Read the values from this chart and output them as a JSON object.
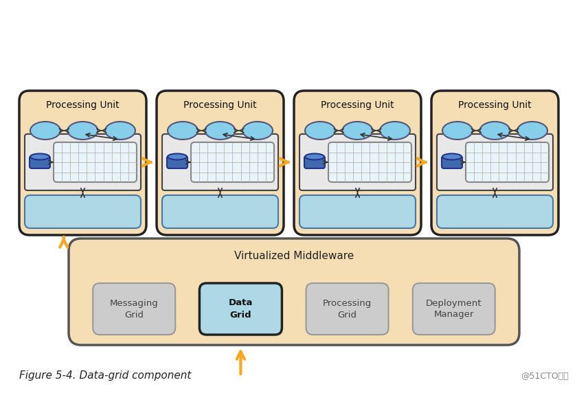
{
  "bg_color": "#ffffff",
  "outer_bg": "#f5deb3",
  "unit_bg": "#f5deb3",
  "unit_border": "#333333",
  "blue_light": "#add8e6",
  "blue_mid": "#87ceeb",
  "blue_dark": "#4169b0",
  "grid_bg": "#e8f4f8",
  "grid_line": "#aaaaaa",
  "orange_arrow": "#f5a623",
  "middleware_bg": "#f5deb3",
  "data_grid_bg": "#add8e6",
  "data_grid_border": "#222222",
  "inactive_box_bg": "#cccccc",
  "inactive_box_border": "#999999",
  "caption": "Figure 5-4. Data-grid component",
  "watermark": "@51CTO博客",
  "pu_labels": [
    "Processing Unit",
    "Processing Unit",
    "Processing Unit",
    "Processing Unit"
  ],
  "middleware_label": "Virtualized Middleware",
  "grid_items": [
    "Messaging\nGrid",
    "Data\nGrid",
    "Processing\nGrid",
    "Deployment\nManager"
  ]
}
